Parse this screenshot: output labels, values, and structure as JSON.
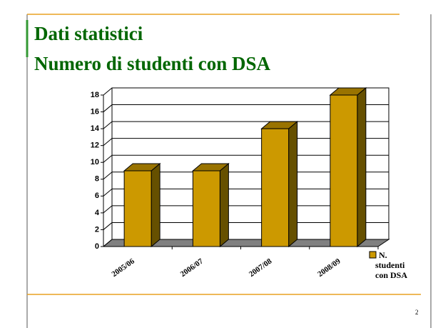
{
  "slide": {
    "title": [
      "Dati statistici",
      "Numero di studenti con DSA"
    ],
    "page_number": 2
  },
  "chart_data": {
    "type": "bar3d",
    "categories": [
      "2005/06",
      "2006/07",
      "2007/08",
      "2008/09"
    ],
    "series": [
      {
        "name": "N. studenti con DSA",
        "color": "#cc9900",
        "values": [
          9,
          9,
          14,
          18
        ]
      }
    ],
    "ylim": [
      0,
      18
    ],
    "yticks": [
      0,
      2,
      4,
      6,
      8,
      10,
      12,
      14,
      16,
      18
    ],
    "grid": true,
    "legend": "right"
  }
}
